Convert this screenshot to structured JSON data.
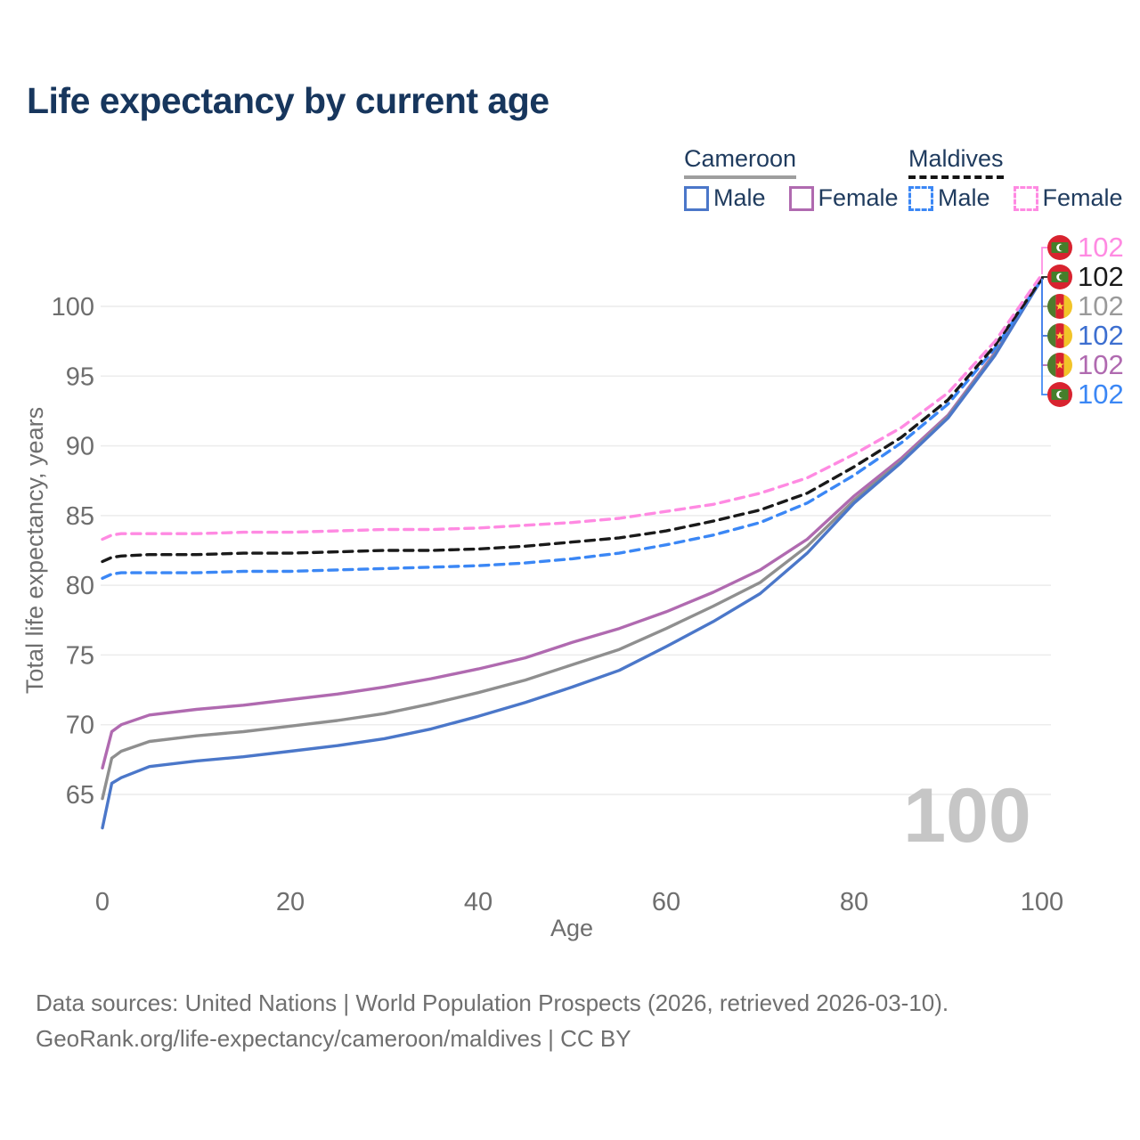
{
  "title": "Life expectancy by current age",
  "legend": {
    "groups": [
      {
        "label": "Cameroon",
        "line_style": "solid",
        "rule_color": "#9e9e9e",
        "items": [
          {
            "label": "Male",
            "color": "#4b77c9",
            "dashed": false
          },
          {
            "label": "Female",
            "color": "#b06ab0",
            "dashed": false
          }
        ]
      },
      {
        "label": "Maldives",
        "line_style": "dashed",
        "rule_color": "#141414",
        "items": [
          {
            "label": "Male",
            "color": "#3b87f5",
            "dashed": true
          },
          {
            "label": "Female",
            "color": "#ff8ae2",
            "dashed": true
          }
        ]
      }
    ]
  },
  "chart_data": {
    "type": "line",
    "title": "Life expectancy by current age",
    "xlabel": "Age",
    "ylabel": "Total life expectancy, years",
    "xlim": [
      0,
      100
    ],
    "ylim": [
      62,
      103
    ],
    "x_ticks": [
      0,
      20,
      40,
      60,
      80,
      100
    ],
    "y_ticks": [
      65,
      70,
      75,
      80,
      85,
      90,
      95,
      100
    ],
    "grid": "horizontal",
    "legend_position": "top-right",
    "watermark": "100",
    "x": [
      0,
      1,
      2,
      5,
      10,
      15,
      20,
      25,
      30,
      35,
      40,
      45,
      50,
      55,
      60,
      65,
      70,
      75,
      80,
      85,
      90,
      95,
      100
    ],
    "series": [
      {
        "name": "Cameroon Female",
        "country": "Cameroon",
        "sex": "Female",
        "color": "#b06ab0",
        "dashed": false,
        "flag": "cameroon",
        "end_label": "102",
        "label_row": 4,
        "label_color": "#b06ab0",
        "values": [
          66.9,
          69.5,
          70.0,
          70.7,
          71.1,
          71.4,
          71.8,
          72.2,
          72.7,
          73.3,
          74.0,
          74.8,
          75.9,
          76.9,
          78.1,
          79.5,
          81.1,
          83.3,
          86.4,
          89.1,
          92.2,
          96.7,
          102.0
        ]
      },
      {
        "name": "Cameroon Both sexes",
        "country": "Cameroon",
        "sex": "Both",
        "color": "#8f8f8f",
        "dashed": false,
        "flag": "cameroon",
        "end_label": "102",
        "label_row": 2,
        "label_color": "#9a9a9a",
        "values": [
          64.7,
          67.6,
          68.1,
          68.8,
          69.2,
          69.5,
          69.9,
          70.3,
          70.8,
          71.5,
          72.3,
          73.2,
          74.3,
          75.4,
          76.9,
          78.5,
          80.2,
          82.8,
          86.1,
          88.9,
          92.1,
          96.6,
          102.0
        ]
      },
      {
        "name": "Cameroon Male",
        "country": "Cameroon",
        "sex": "Male",
        "color": "#4b77c9",
        "dashed": false,
        "flag": "cameroon",
        "end_label": "102",
        "label_row": 3,
        "label_color": "#3d6fd0",
        "values": [
          62.6,
          65.8,
          66.2,
          67.0,
          67.4,
          67.7,
          68.1,
          68.5,
          69.0,
          69.7,
          70.6,
          71.6,
          72.7,
          73.9,
          75.6,
          77.4,
          79.4,
          82.3,
          85.9,
          88.8,
          92.0,
          96.5,
          102.0
        ]
      },
      {
        "name": "Maldives Male",
        "country": "Maldives",
        "sex": "Male",
        "color": "#3b87f5",
        "dashed": true,
        "flag": "maldives",
        "end_label": "102",
        "label_row": 5,
        "label_color": "#3b87f5",
        "values": [
          80.5,
          80.8,
          80.9,
          80.9,
          80.9,
          81.0,
          81.0,
          81.1,
          81.2,
          81.3,
          81.4,
          81.6,
          81.9,
          82.3,
          82.9,
          83.6,
          84.5,
          85.9,
          87.9,
          90.2,
          93.0,
          97.0,
          102.0
        ]
      },
      {
        "name": "Maldives Both sexes",
        "country": "Maldives",
        "sex": "Both",
        "color": "#1a1a1a",
        "dashed": true,
        "flag": "maldives",
        "end_label": "102",
        "label_row": 1,
        "label_color": "#1a1a1a",
        "values": [
          81.7,
          82.0,
          82.1,
          82.2,
          82.2,
          82.3,
          82.3,
          82.4,
          82.5,
          82.5,
          82.6,
          82.8,
          83.1,
          83.4,
          83.9,
          84.6,
          85.4,
          86.6,
          88.5,
          90.6,
          93.3,
          97.2,
          102.0
        ]
      },
      {
        "name": "Maldives Female",
        "country": "Maldives",
        "sex": "Female",
        "color": "#ff8ae2",
        "dashed": true,
        "flag": "maldives",
        "end_label": "102",
        "label_row": 0,
        "label_color": "#ff8ae2",
        "values": [
          83.3,
          83.6,
          83.7,
          83.7,
          83.7,
          83.8,
          83.8,
          83.9,
          84.0,
          84.0,
          84.1,
          84.3,
          84.5,
          84.8,
          85.3,
          85.8,
          86.6,
          87.7,
          89.4,
          91.3,
          93.8,
          97.5,
          102.3
        ]
      }
    ]
  },
  "footer": {
    "line1": "Data sources: United Nations | World Population Prospects (2026, retrieved 2026-03-10).",
    "line2": "GeoRank.org/life-expectancy/cameroon/maldives | CC BY"
  }
}
